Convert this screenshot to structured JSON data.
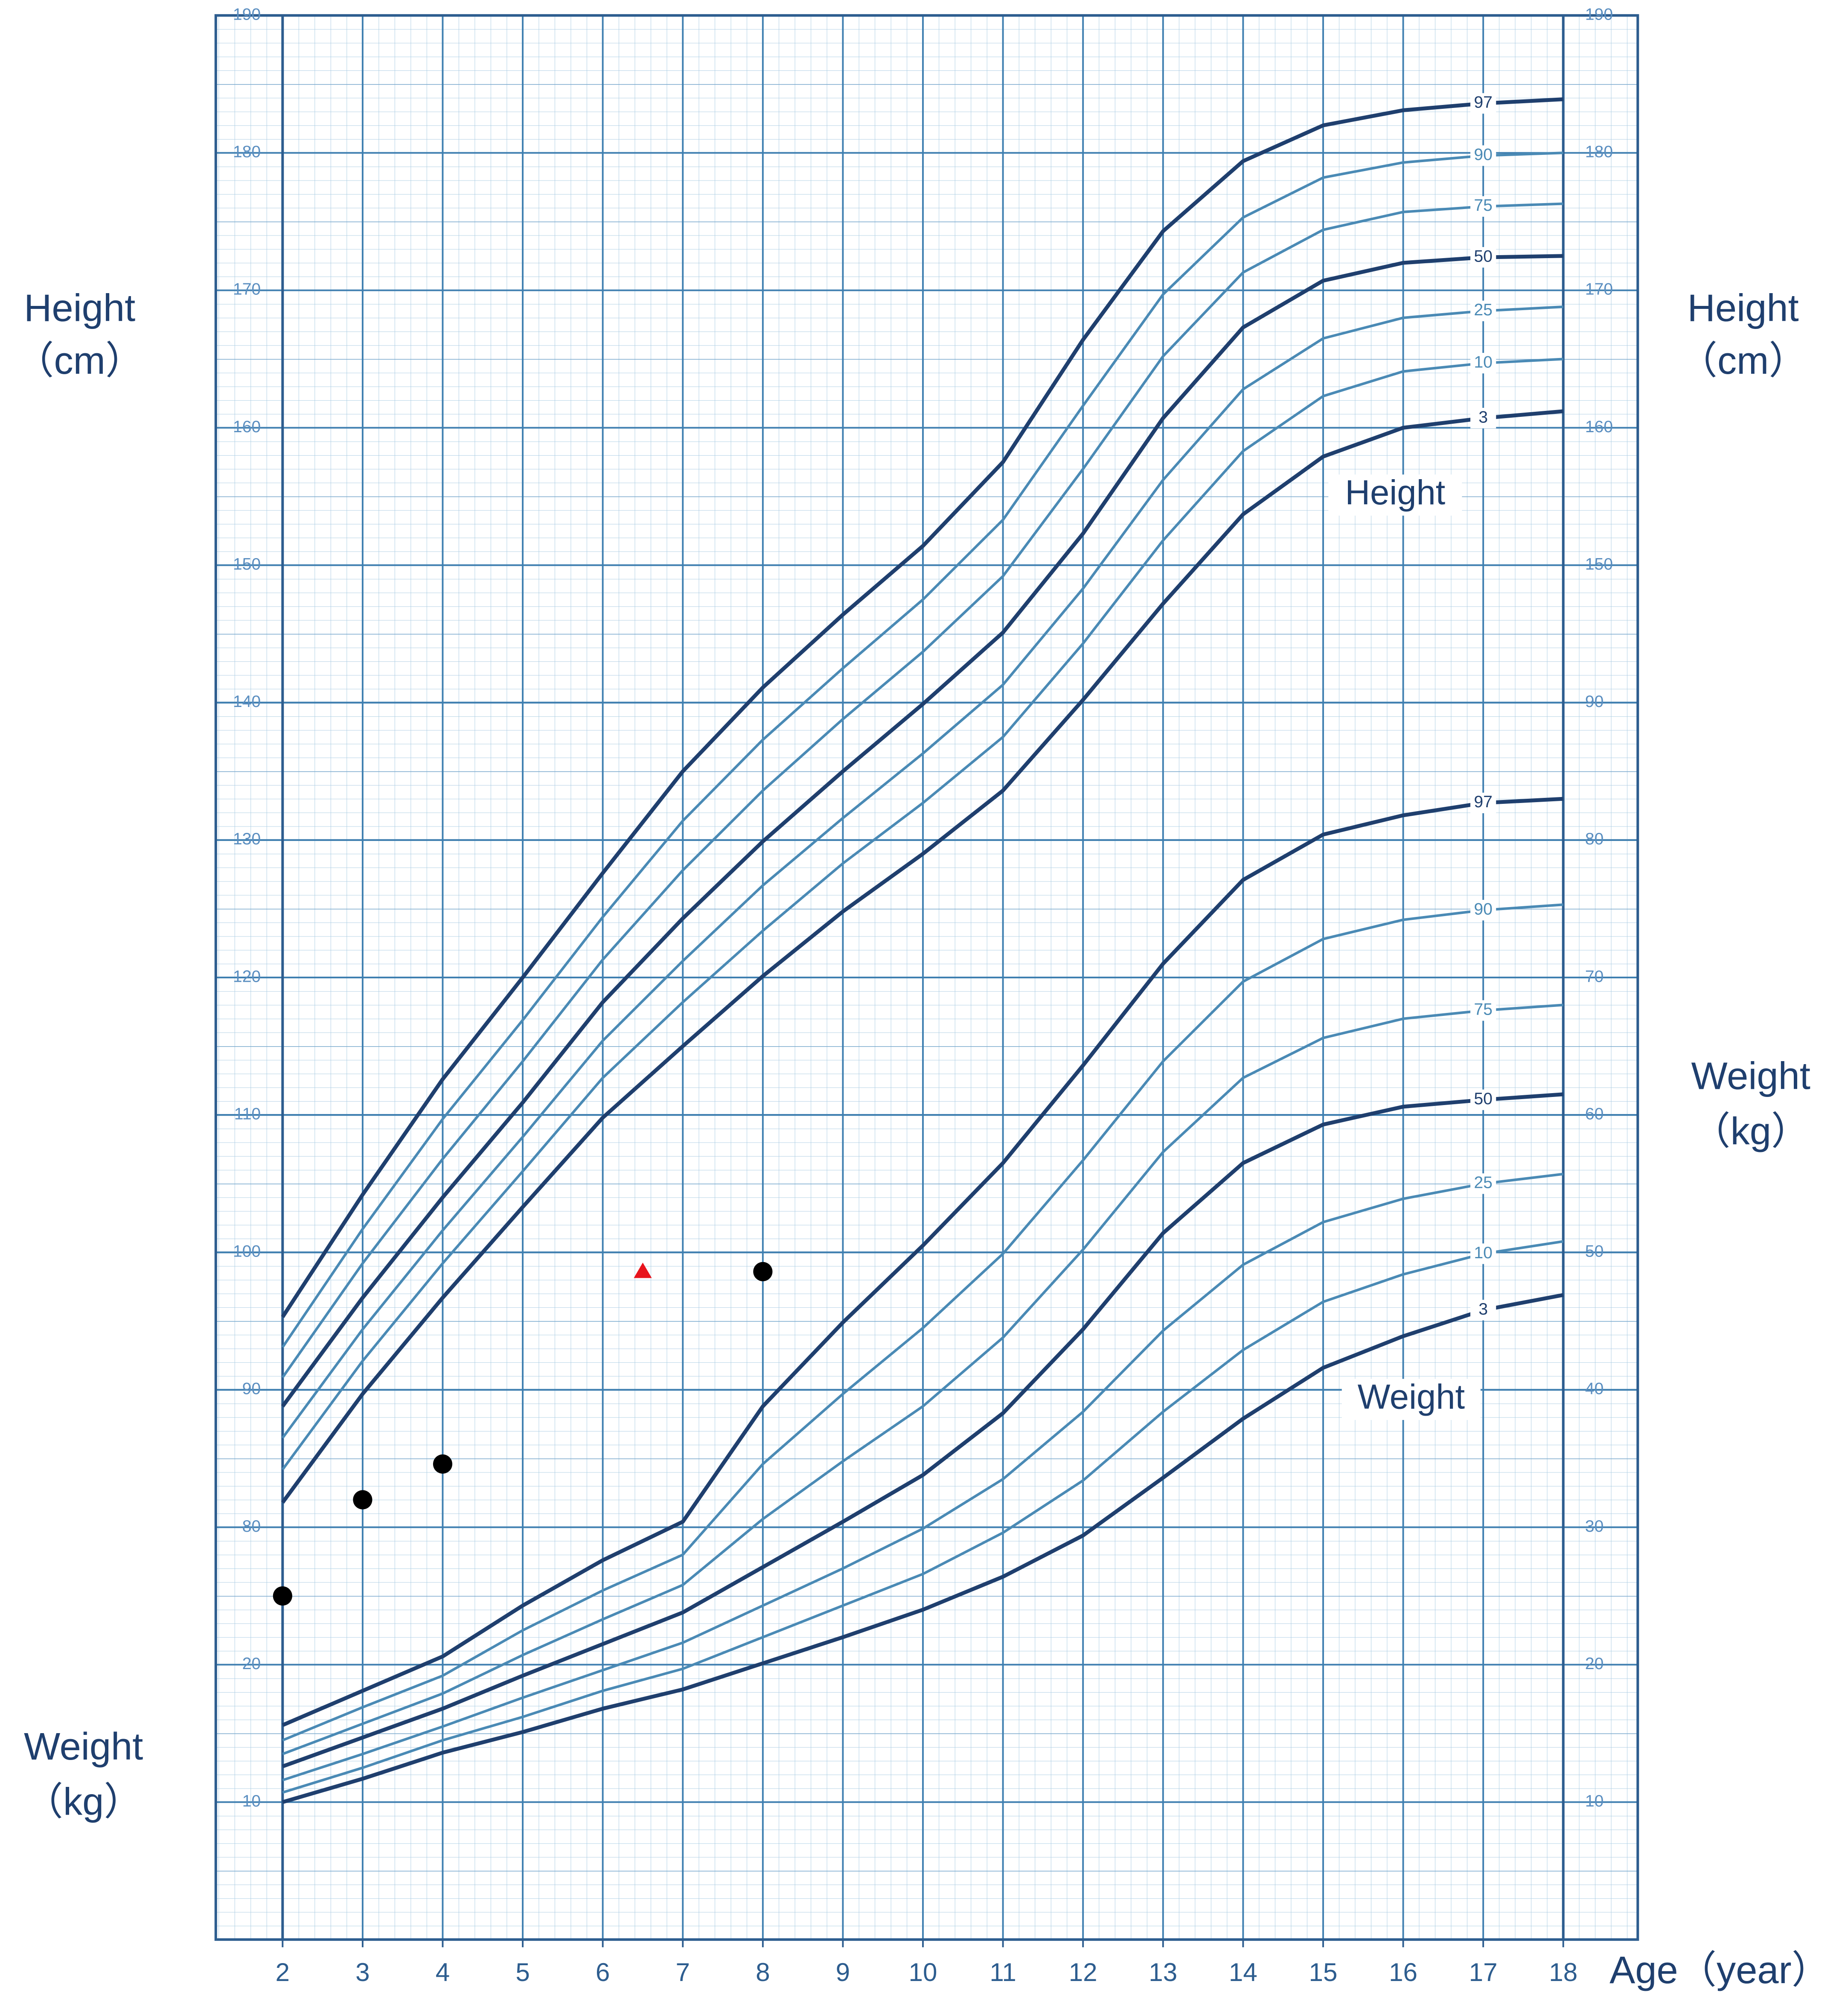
{
  "chart_data": {
    "type": "line",
    "x_label": "Age（year）",
    "y_label": [
      "Height",
      "（cm）"
    ],
    "y2_label": [
      "Weight",
      "（kg）"
    ],
    "annotations": [
      "Height",
      "Weight"
    ],
    "x": [
      2,
      3,
      4,
      5,
      6,
      7,
      8,
      9,
      10,
      11,
      12,
      13,
      14,
      15,
      16,
      17,
      18
    ],
    "xlim": [
      2,
      18
    ],
    "xticks": [
      2,
      3,
      4,
      5,
      6,
      7,
      8,
      9,
      10,
      11,
      12,
      13,
      14,
      15,
      16,
      17,
      18
    ],
    "ylim": [
      50,
      190
    ],
    "yticks": [
      80,
      90,
      100,
      110,
      120,
      130,
      140,
      150,
      160,
      170,
      180,
      190
    ],
    "y2lim": [
      0,
      140
    ],
    "y2ticks": [
      10,
      20,
      30,
      40,
      50,
      60,
      70,
      80,
      90
    ],
    "grid": true,
    "series": [
      {
        "name": "97",
        "color": "#1f3f6e",
        "values": [
          95.3,
          104.2,
          112.6,
          120.0,
          127.6,
          135.0,
          141.1,
          146.4,
          151.4,
          157.5,
          166.4,
          174.3,
          179.4,
          182.0,
          183.1,
          183.6,
          183.9
        ]
      },
      {
        "name": "90",
        "color": "#4a8ab5",
        "values": [
          93.1,
          101.7,
          109.7,
          116.9,
          124.4,
          131.4,
          137.3,
          142.5,
          147.5,
          153.3,
          161.6,
          169.7,
          175.3,
          178.2,
          179.3,
          179.8,
          180.0
        ]
      },
      {
        "name": "75",
        "color": "#4a8ab5",
        "values": [
          90.9,
          99.2,
          106.8,
          113.9,
          121.3,
          127.8,
          133.6,
          138.8,
          143.7,
          149.2,
          157.0,
          165.2,
          171.3,
          174.4,
          175.7,
          176.1,
          176.3
        ]
      },
      {
        "name": "50",
        "color": "#1f3f6e",
        "values": [
          88.8,
          96.7,
          104.0,
          110.9,
          118.2,
          124.3,
          129.9,
          135.0,
          139.9,
          145.1,
          152.3,
          160.7,
          167.3,
          170.7,
          172.0,
          172.4,
          172.5
        ]
      },
      {
        "name": "25",
        "color": "#4a8ab5",
        "values": [
          86.5,
          94.4,
          101.6,
          108.4,
          115.4,
          121.2,
          126.7,
          131.6,
          136.3,
          141.3,
          148.3,
          156.2,
          162.8,
          166.5,
          168.0,
          168.5,
          168.8
        ]
      },
      {
        "name": "10",
        "color": "#4a8ab5",
        "values": [
          84.2,
          92.1,
          99.2,
          105.9,
          112.7,
          118.2,
          123.4,
          128.3,
          132.7,
          137.5,
          144.3,
          151.8,
          158.3,
          162.3,
          164.1,
          164.7,
          165.0
        ]
      },
      {
        "name": "3",
        "color": "#1f3f6e",
        "values": [
          81.8,
          89.7,
          96.7,
          103.3,
          109.8,
          115.0,
          120.1,
          124.8,
          129.0,
          133.6,
          140.2,
          147.2,
          153.7,
          157.9,
          160.0,
          160.7,
          161.2
        ]
      },
      {
        "name": "97",
        "color": "#1f3f6e",
        "axis": "y2",
        "values": [
          15.6,
          18.1,
          20.6,
          24.3,
          27.6,
          30.4,
          38.8,
          44.9,
          50.5,
          56.5,
          63.6,
          71.0,
          77.1,
          80.4,
          81.8,
          82.7,
          83.0
        ]
      },
      {
        "name": "90",
        "color": "#4a8ab5",
        "axis": "y2",
        "values": [
          14.5,
          16.9,
          19.2,
          22.5,
          25.4,
          28.0,
          34.6,
          39.7,
          44.5,
          49.9,
          56.7,
          63.9,
          69.7,
          72.8,
          74.2,
          74.9,
          75.3
        ]
      },
      {
        "name": "75",
        "color": "#4a8ab5",
        "axis": "y2",
        "values": [
          13.5,
          15.7,
          17.9,
          20.7,
          23.3,
          25.8,
          30.6,
          34.8,
          38.8,
          43.8,
          50.2,
          57.3,
          62.7,
          65.6,
          67.0,
          67.6,
          68.0
        ]
      },
      {
        "name": "50",
        "color": "#1f3f6e",
        "axis": "y2",
        "values": [
          12.6,
          14.7,
          16.8,
          19.2,
          21.5,
          23.8,
          27.1,
          30.4,
          33.8,
          38.3,
          44.4,
          51.4,
          56.5,
          59.3,
          60.6,
          61.1,
          61.5
        ]
      },
      {
        "name": "25",
        "color": "#4a8ab5",
        "axis": "y2",
        "values": [
          11.6,
          13.5,
          15.5,
          17.6,
          19.6,
          21.6,
          24.3,
          27.0,
          29.9,
          33.5,
          38.4,
          44.3,
          49.1,
          52.2,
          53.9,
          55.0,
          55.7
        ]
      },
      {
        "name": "10",
        "color": "#4a8ab5",
        "axis": "y2",
        "values": [
          10.7,
          12.5,
          14.5,
          16.2,
          18.1,
          19.7,
          22.0,
          24.3,
          26.6,
          29.6,
          33.4,
          38.4,
          42.9,
          46.4,
          48.4,
          49.9,
          50.8
        ]
      },
      {
        "name": "3",
        "color": "#1f3f6e",
        "axis": "y2",
        "values": [
          10.0,
          11.7,
          13.6,
          15.1,
          16.8,
          18.2,
          20.1,
          22.0,
          24.0,
          26.4,
          29.4,
          33.6,
          37.9,
          41.6,
          43.9,
          45.8,
          46.9
        ]
      }
    ],
    "markers": [
      {
        "marker": "circle",
        "color": "#000000",
        "x": [
          2,
          3,
          4,
          8
        ],
        "values": [
          75.0,
          82.0,
          84.6,
          98.6
        ]
      },
      {
        "marker": "triangle",
        "color": "#e8141c",
        "x": [
          6.5
        ],
        "values": [
          98.6
        ]
      }
    ]
  }
}
